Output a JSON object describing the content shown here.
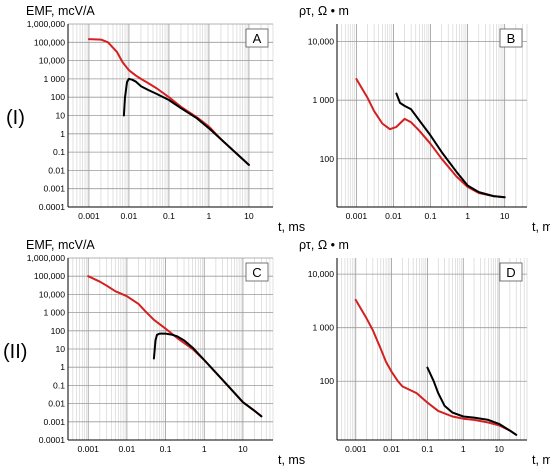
{
  "row_labels": [
    "(I)",
    "(II)"
  ],
  "chart_data": [
    {
      "panel": "A",
      "type": "line",
      "ylabel": "EMF, mcV/A",
      "xlabel": "t, ms",
      "xscale": "log",
      "yscale": "log",
      "xlim": [
        0.0003,
        40
      ],
      "ylim": [
        0.0001,
        1000000
      ],
      "xticks": [
        0.001,
        0.01,
        0.1,
        1,
        10
      ],
      "xtick_labels": [
        "0.001",
        "0.01",
        "0.1",
        "1",
        "10"
      ],
      "yticks": [
        0.0001,
        0.001,
        0.01,
        0.1,
        1,
        10,
        100,
        1000,
        10000,
        100000,
        1000000
      ],
      "ytick_labels": [
        "0.0001",
        "0.001",
        "0.01",
        "0.1",
        "1",
        "10",
        "100",
        "1 000",
        "10,000",
        "100,000",
        "1,000,000"
      ],
      "grid": true,
      "series": [
        {
          "color": "#d42020",
          "x": [
            0.001,
            0.002,
            0.003,
            0.005,
            0.007,
            0.01,
            0.015,
            0.02,
            0.03,
            0.05,
            0.1,
            0.2,
            0.5,
            1,
            2,
            5,
            10
          ],
          "y": [
            150000,
            140000,
            100000,
            30000,
            8000,
            3000,
            1500,
            1000,
            600,
            300,
            100,
            30,
            8,
            2.5,
            0.5,
            0.08,
            0.02
          ]
        },
        {
          "color": "#000000",
          "x": [
            0.0075,
            0.008,
            0.009,
            0.01,
            0.012,
            0.015,
            0.02,
            0.03,
            0.05,
            0.1,
            0.2,
            0.5,
            1,
            2,
            5,
            10
          ],
          "y": [
            10,
            100,
            700,
            1000,
            900,
            700,
            400,
            250,
            150,
            70,
            25,
            7,
            2,
            0.5,
            0.08,
            0.02
          ]
        }
      ]
    },
    {
      "panel": "B",
      "type": "line",
      "ylabel": "ρτ, Ω • m",
      "xlabel": "t, ms",
      "xscale": "log",
      "yscale": "log",
      "xlim": [
        0.0003,
        40
      ],
      "ylim": [
        15,
        20000
      ],
      "xticks": [
        0.001,
        0.01,
        0.1,
        1,
        10
      ],
      "xtick_labels": [
        "0.001",
        "0.01",
        "0.1",
        "1",
        "10"
      ],
      "yticks": [
        100,
        1000,
        10000
      ],
      "ytick_labels": [
        "100",
        "1 000",
        "10,000"
      ],
      "grid": true,
      "series": [
        {
          "color": "#d42020",
          "x": [
            0.001,
            0.002,
            0.003,
            0.005,
            0.008,
            0.012,
            0.02,
            0.03,
            0.05,
            0.1,
            0.2,
            0.5,
            1,
            2,
            5,
            10
          ],
          "y": [
            2300,
            1100,
            650,
            400,
            320,
            350,
            480,
            420,
            300,
            180,
            100,
            50,
            33,
            26,
            23,
            22
          ]
        },
        {
          "color": "#000000",
          "x": [
            0.012,
            0.015,
            0.02,
            0.03,
            0.05,
            0.1,
            0.2,
            0.5,
            1,
            2,
            5,
            10
          ],
          "y": [
            1300,
            900,
            800,
            700,
            450,
            250,
            130,
            60,
            35,
            27,
            23,
            22
          ]
        }
      ]
    },
    {
      "panel": "C",
      "type": "line",
      "ylabel": "EMF, mcV/A",
      "xlabel": "t, ms",
      "xscale": "log",
      "yscale": "log",
      "xlim": [
        0.0003,
        60
      ],
      "ylim": [
        0.0001,
        1000000
      ],
      "xticks": [
        0.001,
        0.01,
        0.1,
        1,
        10
      ],
      "xtick_labels": [
        "0.001",
        "0.01",
        "0.1",
        "1",
        "10"
      ],
      "yticks": [
        0.0001,
        0.001,
        0.01,
        0.1,
        1,
        10,
        100,
        1000,
        10000,
        100000,
        1000000
      ],
      "ytick_labels": [
        "0.0001",
        "0.001",
        "0.01",
        "0.1",
        "1",
        "10",
        "100",
        "1 000",
        "10,000",
        "100,000",
        "1,000,000"
      ],
      "grid": true,
      "series": [
        {
          "color": "#d42020",
          "x": [
            0.001,
            0.002,
            0.003,
            0.005,
            0.01,
            0.02,
            0.03,
            0.05,
            0.1,
            0.2,
            0.5,
            1,
            2,
            5,
            10,
            20,
            30
          ],
          "y": [
            100000,
            50000,
            30000,
            15000,
            8000,
            3000,
            1200,
            400,
            130,
            40,
            10,
            2.5,
            0.5,
            0.06,
            0.012,
            0.004,
            0.002
          ]
        },
        {
          "color": "#000000",
          "x": [
            0.05,
            0.055,
            0.06,
            0.07,
            0.1,
            0.15,
            0.2,
            0.3,
            0.5,
            1,
            2,
            5,
            10,
            20,
            30
          ],
          "y": [
            3,
            30,
            60,
            70,
            70,
            60,
            50,
            30,
            12,
            2.5,
            0.5,
            0.06,
            0.012,
            0.004,
            0.002
          ]
        }
      ]
    },
    {
      "panel": "D",
      "type": "line",
      "ylabel": "ρτ, Ω • m",
      "xlabel": "t, ms",
      "xscale": "log",
      "yscale": "log",
      "xlim": [
        0.0003,
        60
      ],
      "ylim": [
        8,
        20000
      ],
      "xticks": [
        0.001,
        0.01,
        0.1,
        1,
        10
      ],
      "xtick_labels": [
        "0.001",
        "0.01",
        "0.1",
        "1",
        "10"
      ],
      "yticks": [
        100,
        1000,
        10000
      ],
      "ytick_labels": [
        "100",
        "1 000",
        "10,000"
      ],
      "grid": true,
      "series": [
        {
          "color": "#d42020",
          "x": [
            0.001,
            0.002,
            0.003,
            0.005,
            0.007,
            0.01,
            0.015,
            0.02,
            0.05,
            0.1,
            0.2,
            0.5,
            1,
            2,
            5,
            10,
            20,
            30
          ],
          "y": [
            3300,
            1500,
            900,
            400,
            230,
            150,
            100,
            80,
            60,
            40,
            28,
            22,
            20,
            19,
            17,
            15,
            12,
            10
          ]
        },
        {
          "color": "#000000",
          "x": [
            0.1,
            0.15,
            0.2,
            0.3,
            0.5,
            1,
            2,
            5,
            10,
            20,
            30
          ],
          "y": [
            180,
            100,
            60,
            35,
            26,
            22,
            21,
            19,
            16,
            12,
            10
          ]
        }
      ]
    }
  ]
}
